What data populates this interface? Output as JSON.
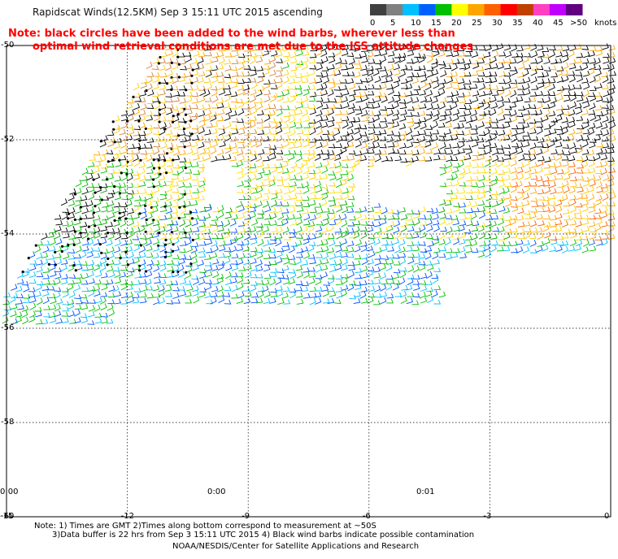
{
  "header": {
    "title": "Rapidscat Winds(12.5KM) Sep  3 15:11 UTC 2015 ascending",
    "note_line1": "Note: black circles have been added to the wind barbs, wherever less than",
    "note_line2": "optimal wind retrieval conditions are met due to the ISS attitude changes"
  },
  "legend": {
    "unit": "knots",
    "ticks": [
      "0",
      "5",
      "10",
      "15",
      "20",
      "25",
      "30",
      "35",
      "40",
      "45",
      ">50"
    ],
    "colors": [
      "#404040",
      "#808080",
      "#00c0ff",
      "#0060ff",
      "#00c000",
      "#ffff00",
      "#ffa500",
      "#ff6000",
      "#ff0000",
      "#c04000",
      "#ff40c0",
      "#c000ff",
      "#600080"
    ]
  },
  "map": {
    "lat_labels": [
      "-50",
      "-52",
      "-54",
      "-56",
      "-58",
      "-60"
    ],
    "lon_labels": [
      "-15",
      "-12",
      "-9",
      "-6",
      "-3",
      "0"
    ],
    "time_labels": [
      "0:00",
      "0:00",
      "0:01"
    ],
    "lat_range": [
      -60,
      -50
    ],
    "lon_range": [
      -15,
      0
    ],
    "grid": true
  },
  "footer": {
    "line1": "Note: 1) Times are GMT 2)Times along bottom correspond to measurement at ~50S",
    "line2": "3)Data buffer is 22 hrs from Sep  3 15:11 UTC 2015 4) Black wind barbs indicate possible contamination",
    "line3": "NOAA/NESDIS/Center for Satellite Applications and Research"
  }
}
